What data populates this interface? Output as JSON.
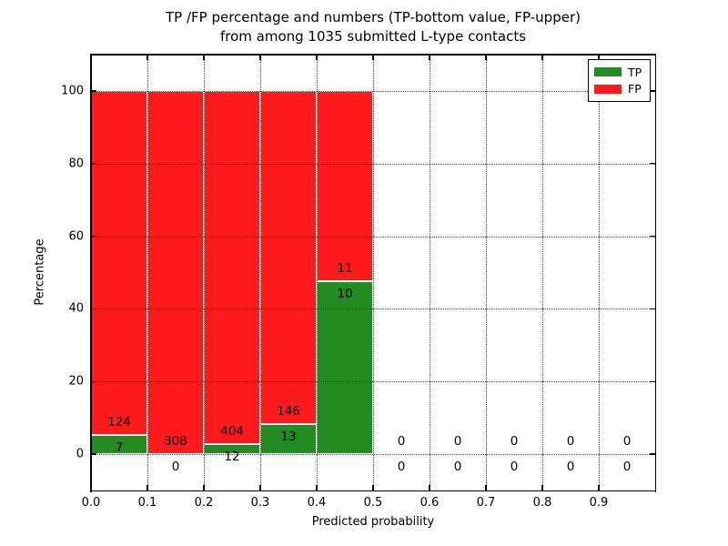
{
  "chart_data": {
    "type": "bar",
    "stacked": true,
    "title_line1": "TP /FP percentage and numbers (TP-bottom value, FP-upper)",
    "title_line2": "from among 1035 submitted L-type contacts",
    "xlabel": "Predicted probability",
    "ylabel": "Percentage",
    "x_tick_labels": [
      "0.0",
      "0.1",
      "0.2",
      "0.3",
      "0.4",
      "0.5",
      "0.6",
      "0.7",
      "0.8",
      "0.9"
    ],
    "x_tick_values": [
      0.0,
      0.1,
      0.2,
      0.3,
      0.4,
      0.5,
      0.6,
      0.7,
      0.8,
      0.9
    ],
    "y_tick_values": [
      0,
      20,
      40,
      60,
      80,
      100
    ],
    "xlim": [
      0.0,
      1.0
    ],
    "ylim": [
      -10,
      110
    ],
    "grid": "dotted, drawn above bars",
    "total_contacts": 1035,
    "colors": {
      "tp": "#228b22",
      "fp": "#fe1a1a",
      "bar_edge": "#ffffff"
    },
    "legend": {
      "position": "upper right",
      "items": [
        {
          "label": "TP",
          "color": "#228b22"
        },
        {
          "label": "FP",
          "color": "#fe1a1a"
        }
      ]
    },
    "bins": [
      {
        "range": [
          0.0,
          0.1
        ],
        "tp": 7,
        "fp": 124,
        "tp_pct": 5.34,
        "fp_pct": 94.66
      },
      {
        "range": [
          0.1,
          0.2
        ],
        "tp": 0,
        "fp": 308,
        "tp_pct": 0.0,
        "fp_pct": 100.0
      },
      {
        "range": [
          0.2,
          0.3
        ],
        "tp": 12,
        "fp": 404,
        "tp_pct": 2.88,
        "fp_pct": 97.12
      },
      {
        "range": [
          0.3,
          0.4
        ],
        "tp": 13,
        "fp": 146,
        "tp_pct": 8.18,
        "fp_pct": 91.82
      },
      {
        "range": [
          0.4,
          0.5
        ],
        "tp": 10,
        "fp": 11,
        "tp_pct": 47.62,
        "fp_pct": 52.38
      },
      {
        "range": [
          0.5,
          0.6
        ],
        "tp": 0,
        "fp": 0,
        "tp_pct": 0.0,
        "fp_pct": 0.0
      },
      {
        "range": [
          0.6,
          0.7
        ],
        "tp": 0,
        "fp": 0,
        "tp_pct": 0.0,
        "fp_pct": 0.0
      },
      {
        "range": [
          0.7,
          0.8
        ],
        "tp": 0,
        "fp": 0,
        "tp_pct": 0.0,
        "fp_pct": 0.0
      },
      {
        "range": [
          0.8,
          0.9
        ],
        "tp": 0,
        "fp": 0,
        "tp_pct": 0.0,
        "fp_pct": 0.0
      },
      {
        "range": [
          0.9,
          1.0
        ],
        "tp": 0,
        "fp": 0,
        "tp_pct": 0.0,
        "fp_pct": 0.0
      }
    ]
  }
}
